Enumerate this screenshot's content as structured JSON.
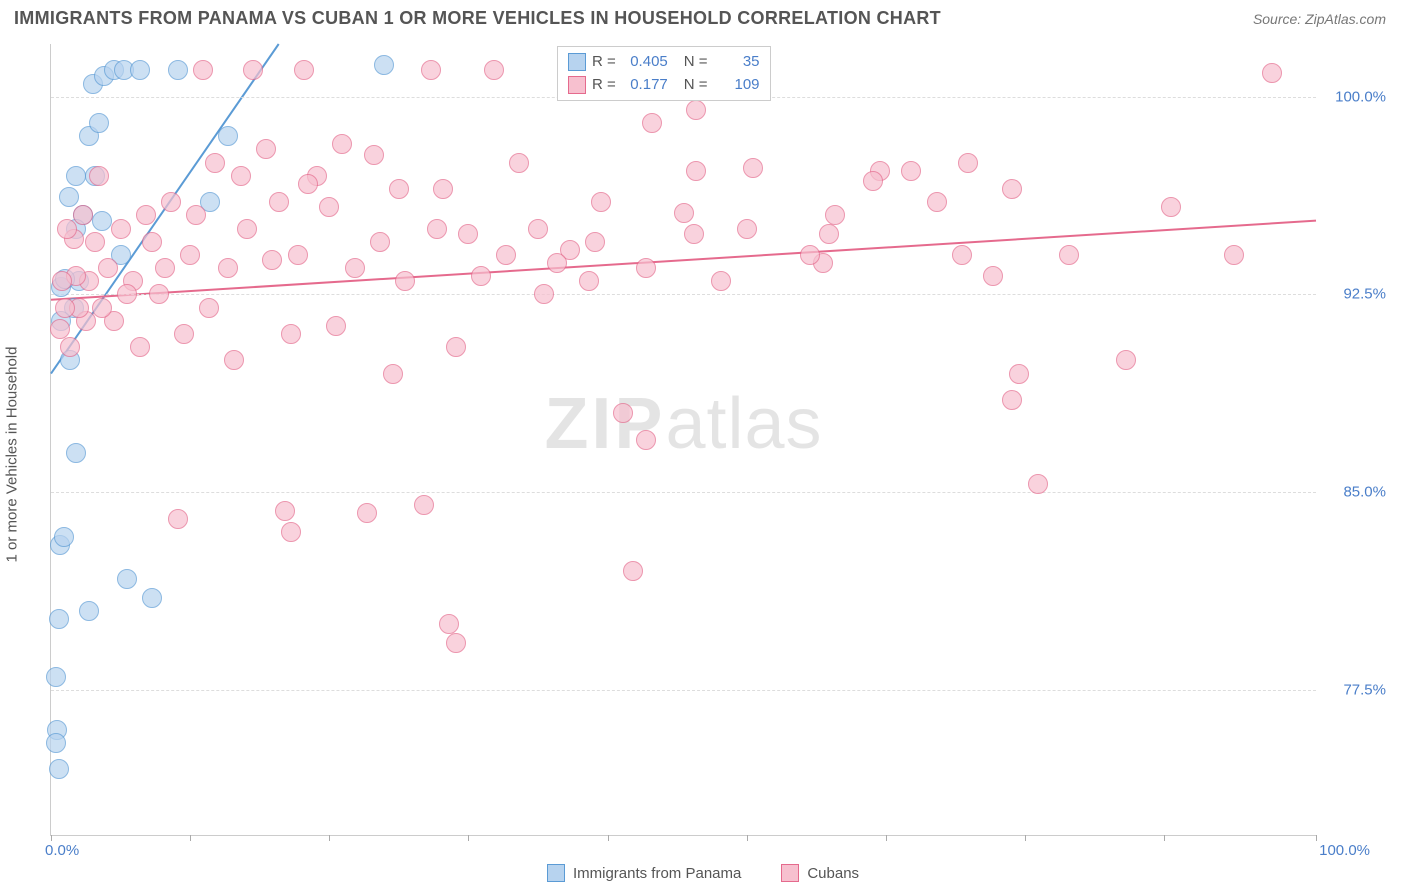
{
  "title": "IMMIGRANTS FROM PANAMA VS CUBAN 1 OR MORE VEHICLES IN HOUSEHOLD CORRELATION CHART",
  "source": "Source: ZipAtlas.com",
  "ylabel": "1 or more Vehicles in Household",
  "watermark_a": "ZIP",
  "watermark_b": "atlas",
  "chart": {
    "type": "scatter",
    "background_color": "#ffffff",
    "grid_color": "#dddddd",
    "xlim": [
      0,
      100
    ],
    "ylim": [
      72,
      102
    ],
    "xticks": [
      0,
      11,
      22,
      33,
      44,
      55,
      66,
      77,
      88,
      100
    ],
    "xtick_labels": {
      "0": "0.0%",
      "100": "100.0%"
    },
    "yticks": [
      77.5,
      85.0,
      92.5,
      100.0
    ],
    "ytick_labels": [
      "77.5%",
      "85.0%",
      "92.5%",
      "100.0%"
    ],
    "marker_radius": 10,
    "marker_opacity": 0.35,
    "line_width": 2,
    "label_fontsize": 15,
    "label_color": "#4a7ec9"
  },
  "series": [
    {
      "name": "Immigrants from Panama",
      "color": "#5b9bd5",
      "fill": "#b7d3ef",
      "R": "0.405",
      "N": "35",
      "trend": {
        "x1": 0,
        "y1": 89.5,
        "x2": 18,
        "y2": 102
      },
      "points": [
        [
          0.4,
          78.0
        ],
        [
          0.5,
          76.0
        ],
        [
          0.6,
          74.5
        ],
        [
          0.4,
          75.5
        ],
        [
          0.7,
          83.0
        ],
        [
          1.0,
          83.3
        ],
        [
          2.0,
          86.5
        ],
        [
          1.5,
          90.0
        ],
        [
          1.8,
          92.0
        ],
        [
          0.8,
          92.8
        ],
        [
          0.8,
          91.5
        ],
        [
          2.2,
          93.0
        ],
        [
          1.1,
          93.1
        ],
        [
          2.5,
          95.5
        ],
        [
          2.0,
          95.0
        ],
        [
          1.4,
          96.2
        ],
        [
          2.0,
          97.0
        ],
        [
          3.5,
          97.0
        ],
        [
          3.0,
          98.5
        ],
        [
          3.8,
          99.0
        ],
        [
          3.3,
          100.5
        ],
        [
          4.2,
          100.8
        ],
        [
          5.0,
          101.0
        ],
        [
          5.8,
          101.0
        ],
        [
          4.0,
          95.3
        ],
        [
          5.5,
          94.0
        ],
        [
          7.0,
          101.0
        ],
        [
          10.0,
          101.0
        ],
        [
          14.0,
          98.5
        ],
        [
          12.6,
          96.0
        ],
        [
          8.0,
          81.0
        ],
        [
          6.0,
          81.7
        ],
        [
          3.0,
          80.5
        ],
        [
          0.6,
          80.2
        ],
        [
          26.3,
          101.2
        ]
      ]
    },
    {
      "name": "Cubans",
      "color": "#e56a8d",
      "fill": "#f7c0cf",
      "R": "0.177",
      "N": "109",
      "trend": {
        "x1": 0,
        "y1": 92.3,
        "x2": 100,
        "y2": 95.3
      },
      "points": [
        [
          96.5,
          100.9
        ],
        [
          93.5,
          94.0
        ],
        [
          88.5,
          95.8
        ],
        [
          85.0,
          90.0
        ],
        [
          80.5,
          94.0
        ],
        [
          78.0,
          85.3
        ],
        [
          76.5,
          89.5
        ],
        [
          76.0,
          96.5
        ],
        [
          74.5,
          93.2
        ],
        [
          72.5,
          97.5
        ],
        [
          72.0,
          94.0
        ],
        [
          70.0,
          96.0
        ],
        [
          68.0,
          97.2
        ],
        [
          65.5,
          97.2
        ],
        [
          65.0,
          96.8
        ],
        [
          62.0,
          95.5
        ],
        [
          61.0,
          93.7
        ],
        [
          60.0,
          94.0
        ],
        [
          55.5,
          97.3
        ],
        [
          55.0,
          95.0
        ],
        [
          53.0,
          93.0
        ],
        [
          51.0,
          99.5
        ],
        [
          51.0,
          97.2
        ],
        [
          50.8,
          94.8
        ],
        [
          50.0,
          95.6
        ],
        [
          48.0,
          101.0
        ],
        [
          47.5,
          99.0
        ],
        [
          47.0,
          93.5
        ],
        [
          46.0,
          82.0
        ],
        [
          45.2,
          88.0
        ],
        [
          43.5,
          96.0
        ],
        [
          43.0,
          94.5
        ],
        [
          42.5,
          93.0
        ],
        [
          41.0,
          94.2
        ],
        [
          40.0,
          93.7
        ],
        [
          39.0,
          92.5
        ],
        [
          38.5,
          95.0
        ],
        [
          37.0,
          97.5
        ],
        [
          36.0,
          94.0
        ],
        [
          35.0,
          101.0
        ],
        [
          34.0,
          93.2
        ],
        [
          33.0,
          94.8
        ],
        [
          32.0,
          79.3
        ],
        [
          32.0,
          90.5
        ],
        [
          31.5,
          80.0
        ],
        [
          31.0,
          96.5
        ],
        [
          30.0,
          101.0
        ],
        [
          30.5,
          95.0
        ],
        [
          29.5,
          84.5
        ],
        [
          28.0,
          93.0
        ],
        [
          27.5,
          96.5
        ],
        [
          27.0,
          89.5
        ],
        [
          26.0,
          94.5
        ],
        [
          25.5,
          97.8
        ],
        [
          25.0,
          84.2
        ],
        [
          24.0,
          93.5
        ],
        [
          23.0,
          98.2
        ],
        [
          22.0,
          95.8
        ],
        [
          22.5,
          91.3
        ],
        [
          21.0,
          97.0
        ],
        [
          20.3,
          96.7
        ],
        [
          20.0,
          101.0
        ],
        [
          19.5,
          94.0
        ],
        [
          19.0,
          91.0
        ],
        [
          18.5,
          84.3
        ],
        [
          18.0,
          96.0
        ],
        [
          17.5,
          93.8
        ],
        [
          17.0,
          98.0
        ],
        [
          16.0,
          101.0
        ],
        [
          15.5,
          95.0
        ],
        [
          15.0,
          97.0
        ],
        [
          14.5,
          90.0
        ],
        [
          14.0,
          93.5
        ],
        [
          13.0,
          97.5
        ],
        [
          12.5,
          92.0
        ],
        [
          12.0,
          101.0
        ],
        [
          11.5,
          95.5
        ],
        [
          11.0,
          94.0
        ],
        [
          10.5,
          91.0
        ],
        [
          10.0,
          84.0
        ],
        [
          9.5,
          96.0
        ],
        [
          9.0,
          93.5
        ],
        [
          8.5,
          92.5
        ],
        [
          8.0,
          94.5
        ],
        [
          7.5,
          95.5
        ],
        [
          7.0,
          90.5
        ],
        [
          6.5,
          93.0
        ],
        [
          6.0,
          92.5
        ],
        [
          5.5,
          95.0
        ],
        [
          5.0,
          91.5
        ],
        [
          4.5,
          93.5
        ],
        [
          4.0,
          92.0
        ],
        [
          3.8,
          97.0
        ],
        [
          3.5,
          94.5
        ],
        [
          3.0,
          93.0
        ],
        [
          2.8,
          91.5
        ],
        [
          2.5,
          95.5
        ],
        [
          2.2,
          92.0
        ],
        [
          2.0,
          93.2
        ],
        [
          1.8,
          94.6
        ],
        [
          1.5,
          90.5
        ],
        [
          1.3,
          95.0
        ],
        [
          1.1,
          92.0
        ],
        [
          0.9,
          93.0
        ],
        [
          0.7,
          91.2
        ],
        [
          19.0,
          83.5
        ],
        [
          47.0,
          87.0
        ],
        [
          76.0,
          88.5
        ],
        [
          61.5,
          94.8
        ]
      ]
    }
  ],
  "legend_labels": {
    "R": "R =",
    "N": "N ="
  }
}
